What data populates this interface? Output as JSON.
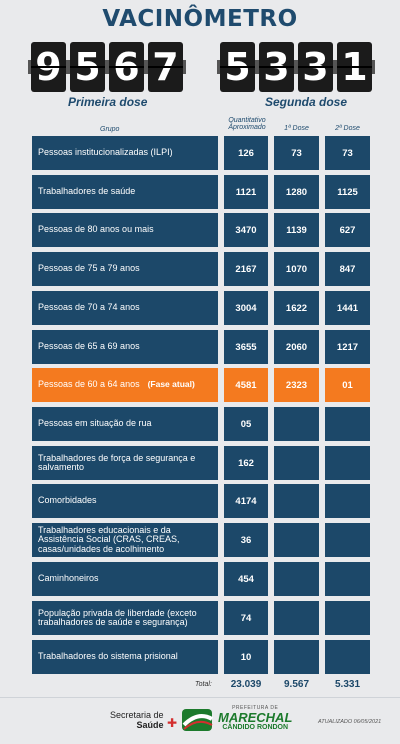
{
  "title": "VACINÔMETRO",
  "counters": {
    "first": {
      "digits": [
        "9",
        "5",
        "6",
        "7"
      ],
      "label": "Primeira dose"
    },
    "second": {
      "digits": [
        "5",
        "3",
        "3",
        "1"
      ],
      "label": "Segunda dose"
    }
  },
  "columns": {
    "group": "Grupo",
    "qty_line1": "Quantitativo",
    "qty_line2": "Aproximado",
    "dose1": "1ª Dose",
    "dose2": "2ª Dose"
  },
  "rows": [
    {
      "group": "Pessoas institucionalizadas (ILPI)",
      "qty": "126",
      "dose1": "73",
      "dose2": "73"
    },
    {
      "group": "Trabalhadores de saúde",
      "qty": "1121",
      "dose1": "1280",
      "dose2": "1125"
    },
    {
      "group": "Pessoas de 80 anos ou mais",
      "qty": "3470",
      "dose1": "1139",
      "dose2": "627"
    },
    {
      "group": "Pessoas de 75 a 79 anos",
      "qty": "2167",
      "dose1": "1070",
      "dose2": "847"
    },
    {
      "group": "Pessoas de 70 a 74 anos",
      "qty": "3004",
      "dose1": "1622",
      "dose2": "1441"
    },
    {
      "group": "Pessoas de 65 a 69 anos",
      "qty": "3655",
      "dose1": "2060",
      "dose2": "1217"
    },
    {
      "group": "Pessoas de 60 a 64 anos",
      "phase": "(Fase atual)",
      "qty": "4581",
      "dose1": "2323",
      "dose2": "01"
    },
    {
      "group": "Pessoas em situação de rua",
      "qty": "05",
      "dose1": "",
      "dose2": ""
    },
    {
      "group": "Trabalhadores de força de segurança e salvamento",
      "qty": "162",
      "dose1": "",
      "dose2": ""
    },
    {
      "group": "Comorbidades",
      "qty": "4174",
      "dose1": "",
      "dose2": ""
    },
    {
      "group": "Trabalhadores educacionais e da Assistência Social (CRAS, CREAS, casas/unidades de acolhimento",
      "qty": "36",
      "dose1": "",
      "dose2": ""
    },
    {
      "group": "Caminhoneiros",
      "qty": "454",
      "dose1": "",
      "dose2": ""
    },
    {
      "group": "População privada de liberdade (exceto trabalhadores de saúde e segurança)",
      "qty": "74",
      "dose1": "",
      "dose2": ""
    },
    {
      "group": "Trabalhadores do sistema prisional",
      "qty": "10",
      "dose1": "",
      "dose2": ""
    }
  ],
  "totals": {
    "label": "Total:",
    "qty": "23.039",
    "dose1": "9.567",
    "dose2": "5.331"
  },
  "footer": {
    "secretaria_line1": "Secretaria de",
    "secretaria_line2": "Saúde",
    "prefeitura": "PREFEITURA DE",
    "city1": "MARECHAL",
    "city2": "CÂNDIDO RONDON",
    "updated": "ATUALIZADO 06/05/2021"
  },
  "colors": {
    "row": "#1c4869",
    "current_row": "#f47a1f",
    "title": "#1f4b6e"
  }
}
